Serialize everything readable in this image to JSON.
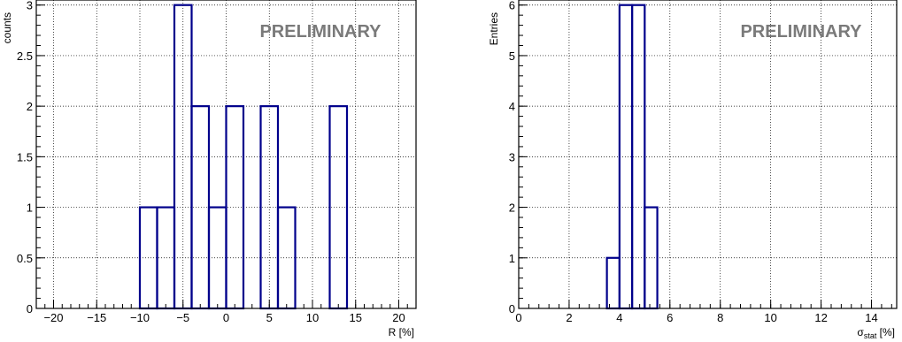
{
  "chart_data": [
    {
      "type": "histogram",
      "title": "",
      "xlabel": "R [%]",
      "ylabel": "counts",
      "watermark": "PRELIMINARY",
      "xlim": [
        -22,
        22
      ],
      "ylim": [
        0,
        3.05
      ],
      "x_ticks": [
        -20,
        -15,
        -10,
        -5,
        0,
        5,
        10,
        15,
        20
      ],
      "x_tick_labels": [
        "−20",
        "−15",
        "−10",
        "−5",
        "0",
        "5",
        "10",
        "15",
        "20"
      ],
      "y_ticks": [
        0,
        0.5,
        1,
        1.5,
        2,
        2.5,
        3
      ],
      "y_tick_labels": [
        "0",
        "0.5",
        "1",
        "1.5",
        "2",
        "2.5",
        "3"
      ],
      "grid": true,
      "line_color": "#00008b",
      "bins": [
        {
          "lo": -10,
          "hi": -8,
          "count": 1
        },
        {
          "lo": -8,
          "hi": -6,
          "count": 1
        },
        {
          "lo": -6,
          "hi": -4,
          "count": 3
        },
        {
          "lo": -4,
          "hi": -2,
          "count": 2
        },
        {
          "lo": -2,
          "hi": 0,
          "count": 1
        },
        {
          "lo": 0,
          "hi": 2,
          "count": 2
        },
        {
          "lo": 2,
          "hi": 4,
          "count": 0
        },
        {
          "lo": 4,
          "hi": 6,
          "count": 2
        },
        {
          "lo": 6,
          "hi": 8,
          "count": 1
        },
        {
          "lo": 8,
          "hi": 10,
          "count": 0
        },
        {
          "lo": 10,
          "hi": 12,
          "count": 0
        },
        {
          "lo": 12,
          "hi": 14,
          "count": 2
        }
      ]
    },
    {
      "type": "histogram",
      "title": "",
      "xlabel_main": "σ",
      "xlabel_sub": "stat",
      "xlabel_unit": " [%]",
      "ylabel": "Entries",
      "watermark": "PRELIMINARY",
      "xlim": [
        0,
        15
      ],
      "ylim": [
        0,
        6.1
      ],
      "x_ticks": [
        0,
        2,
        4,
        6,
        8,
        10,
        12,
        14
      ],
      "x_tick_labels": [
        "0",
        "2",
        "4",
        "6",
        "8",
        "10",
        "12",
        "14"
      ],
      "y_ticks": [
        0,
        1,
        2,
        3,
        4,
        5,
        6
      ],
      "y_tick_labels": [
        "0",
        "1",
        "2",
        "3",
        "4",
        "5",
        "6"
      ],
      "grid": true,
      "line_color": "#00008b",
      "bins": [
        {
          "lo": 3.5,
          "hi": 4.0,
          "count": 1
        },
        {
          "lo": 4.0,
          "hi": 4.5,
          "count": 6
        },
        {
          "lo": 4.5,
          "hi": 5.0,
          "count": 6
        },
        {
          "lo": 5.0,
          "hi": 5.5,
          "count": 2
        }
      ]
    }
  ]
}
